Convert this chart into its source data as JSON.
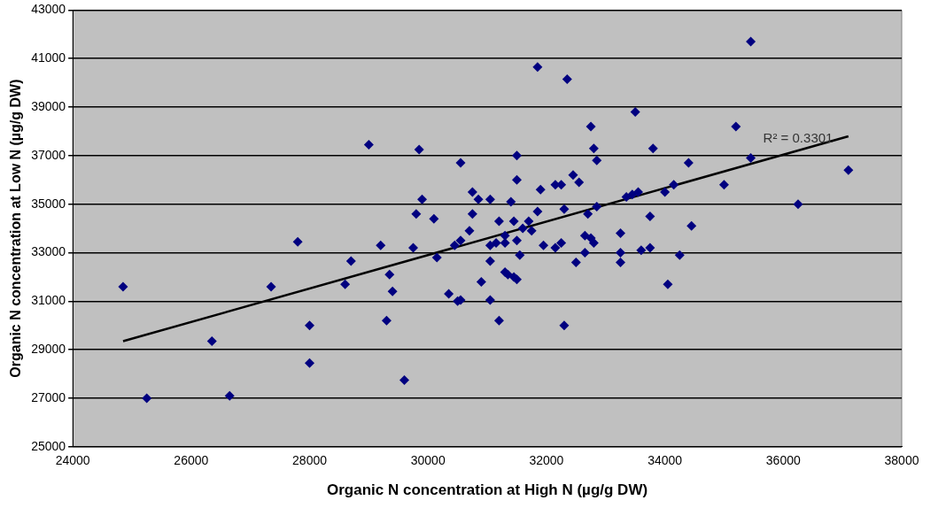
{
  "chart_data": {
    "type": "scatter",
    "xlabel": "Organic N concentration at High N (µg/g DW)",
    "ylabel": "Organic N concentration at Low N (µg/g DW)",
    "xlim": [
      24000,
      38000
    ],
    "xticks": [
      24000,
      26000,
      28000,
      30000,
      32000,
      34000,
      36000,
      38000
    ],
    "ylim": [
      25000,
      43000
    ],
    "yticks": [
      25000,
      27000,
      29000,
      31000,
      33000,
      35000,
      37000,
      39000,
      41000,
      43000
    ],
    "grid": "y",
    "marker": "diamond",
    "annotations": [
      "R² = 0.3301"
    ],
    "series": [
      {
        "color": "#000080",
        "x": [
          24850,
          25250,
          26350,
          26650,
          27350,
          27800,
          28000,
          28000,
          28600,
          28700,
          29000,
          29200,
          29350,
          29400,
          29300,
          29600,
          29750,
          29800,
          29850,
          29900,
          30100,
          30150,
          30350,
          30500,
          30550,
          30450,
          30550,
          30550,
          30700,
          30750,
          30750,
          30850,
          30900,
          31050,
          31050,
          31050,
          31050,
          31150,
          31200,
          31200,
          31300,
          31300,
          31300,
          31350,
          31400,
          31450,
          31450,
          31500,
          31500,
          31500,
          31500,
          31550,
          31600,
          31700,
          31750,
          31850,
          31850,
          31900,
          31950,
          32150,
          32150,
          32250,
          32250,
          32300,
          32300,
          32350,
          32450,
          32500,
          32550,
          32650,
          32650,
          32700,
          32750,
          32750,
          32800,
          32850,
          32800,
          32850,
          33250,
          33250,
          33250,
          33350,
          33450,
          33500,
          33550,
          33600,
          33750,
          33750,
          33800,
          34000,
          34050,
          34150,
          34250,
          34400,
          34450,
          35000,
          35200,
          35450,
          35450,
          36250,
          37100
        ],
        "values": [
          31600,
          27000,
          29350,
          27100,
          31600,
          33450,
          30000,
          28450,
          31700,
          32650,
          37450,
          33300,
          32100,
          31400,
          30200,
          27750,
          33200,
          34600,
          37250,
          35200,
          34400,
          32800,
          31300,
          31000,
          31050,
          33300,
          33500,
          36700,
          33900,
          35500,
          34600,
          35200,
          31800,
          35200,
          33300,
          32650,
          31050,
          33400,
          30200,
          34300,
          33700,
          33400,
          32200,
          32100,
          35100,
          34300,
          32000,
          31900,
          33500,
          36000,
          37000,
          32900,
          34000,
          34300,
          33900,
          34700,
          40650,
          35600,
          33300,
          35800,
          33200,
          35800,
          33400,
          34800,
          30000,
          40150,
          36200,
          32600,
          35900,
          33000,
          33700,
          34600,
          38200,
          33600,
          37300,
          36800,
          33400,
          34900,
          33800,
          33000,
          32600,
          35300,
          35400,
          38800,
          35500,
          33100,
          33200,
          34500,
          37300,
          35500,
          31700,
          35800,
          32900,
          36700,
          34100,
          35800,
          38200,
          41700,
          36900,
          35000,
          36400
        ]
      },
      {
        "type": "line",
        "color": "#000000",
        "marker": "none",
        "line_style": "solid",
        "x": [
          24850,
          37100
        ],
        "values": [
          29350,
          37800
        ]
      }
    ]
  }
}
